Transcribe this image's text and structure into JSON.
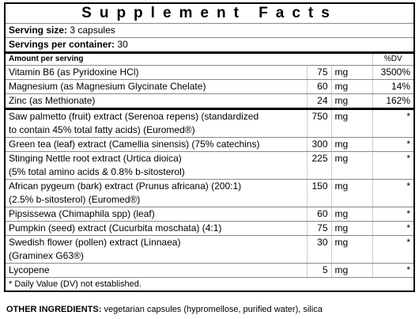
{
  "title": "Supplement Facts",
  "serving_size": {
    "label": "Serving size:",
    "value": "3 capsules"
  },
  "servings_per_container": {
    "label": "Servings per container:",
    "value": "30"
  },
  "header": {
    "amount": "Amount per serving",
    "dv": "%DV"
  },
  "rows": [
    {
      "name": [
        "Vitamin B6 (as Pyridoxine HCl)"
      ],
      "amount": 75,
      "unit": "mg",
      "dv": "3500%"
    },
    {
      "name": [
        "Magnesium (as Magnesium Glycinate Chelate)"
      ],
      "amount": 60,
      "unit": "mg",
      "dv": "14%"
    },
    {
      "name": [
        "Zinc (as Methionate)"
      ],
      "amount": 24,
      "unit": "mg",
      "dv": "162%"
    },
    {
      "name": [
        "Saw palmetto (fruit) extract (Serenoa repens) (standardized",
        "to contain 45% total fatty acids) (Euromed®)"
      ],
      "amount": 750,
      "unit": "mg",
      "dv": "*"
    },
    {
      "name": [
        "Green tea (leaf) extract (Camellia sinensis) (75% catechins)"
      ],
      "amount": 300,
      "unit": "mg",
      "dv": "*"
    },
    {
      "name": [
        "Stinging Nettle root extract (Urtica dioica)",
        "(5% total amino acids & 0.8% b-sitosterol)"
      ],
      "amount": 225,
      "unit": "mg",
      "dv": "*"
    },
    {
      "name": [
        "African pygeum (bark) extract (Prunus africana) (200:1)",
        "(2.5% b-sitosterol) (Euromed®)"
      ],
      "amount": 150,
      "unit": "mg",
      "dv": "*"
    },
    {
      "name": [
        "Pipsissewa (Chimaphila spp) (leaf)"
      ],
      "amount": 60,
      "unit": "mg",
      "dv": "*"
    },
    {
      "name": [
        "Pumpkin (seed) extract (Cucurbita moschata) (4:1)"
      ],
      "amount": 75,
      "unit": "mg",
      "dv": "*"
    },
    {
      "name": [
        "Swedish flower (pollen) extract (Linnaea)",
        "(Graminex G63®)"
      ],
      "amount": 30,
      "unit": "mg",
      "dv": "*"
    },
    {
      "name": [
        "Lycopene"
      ],
      "amount": 5,
      "unit": "mg",
      "dv": "*"
    }
  ],
  "footnote": "* Daily Value (DV) not established.",
  "other_ingredients": {
    "label": "OTHER INGREDIENTS:",
    "text": "vegetarian capsules (hypromellose, purified water), silica"
  }
}
